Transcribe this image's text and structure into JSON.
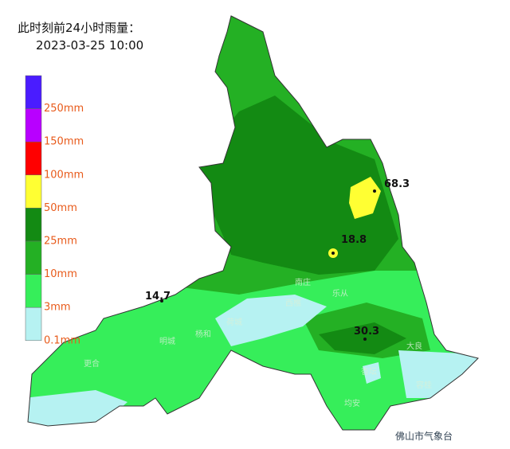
{
  "title": "此时刻前24小时雨量：",
  "time": "2023-03-25 10:00",
  "legend": [
    {
      "label": "250mm",
      "color": "#4a1cff"
    },
    {
      "label": "150mm",
      "color": "#b800ff"
    },
    {
      "label": "100mm",
      "color": "#ff0000"
    },
    {
      "label": "50mm",
      "color": "#ffff33"
    },
    {
      "label": "25mm",
      "color": "#138a13"
    },
    {
      "label": "10mm",
      "color": "#24b024"
    },
    {
      "label": "3mm",
      "color": "#36ee5a"
    },
    {
      "label": "0.1mm",
      "color": "#b6f2f2"
    }
  ],
  "stations": [
    {
      "value": 68.3
    },
    {
      "value": 18.8
    },
    {
      "value": 14.7
    },
    {
      "value": 30.3
    }
  ],
  "places": [
    "南庄",
    "西樵",
    "荷城",
    "杨和",
    "明城",
    "更合",
    "乐从",
    "杏坛",
    "容桂",
    "均安",
    "大良"
  ],
  "watermark": "佛山市气象台"
}
